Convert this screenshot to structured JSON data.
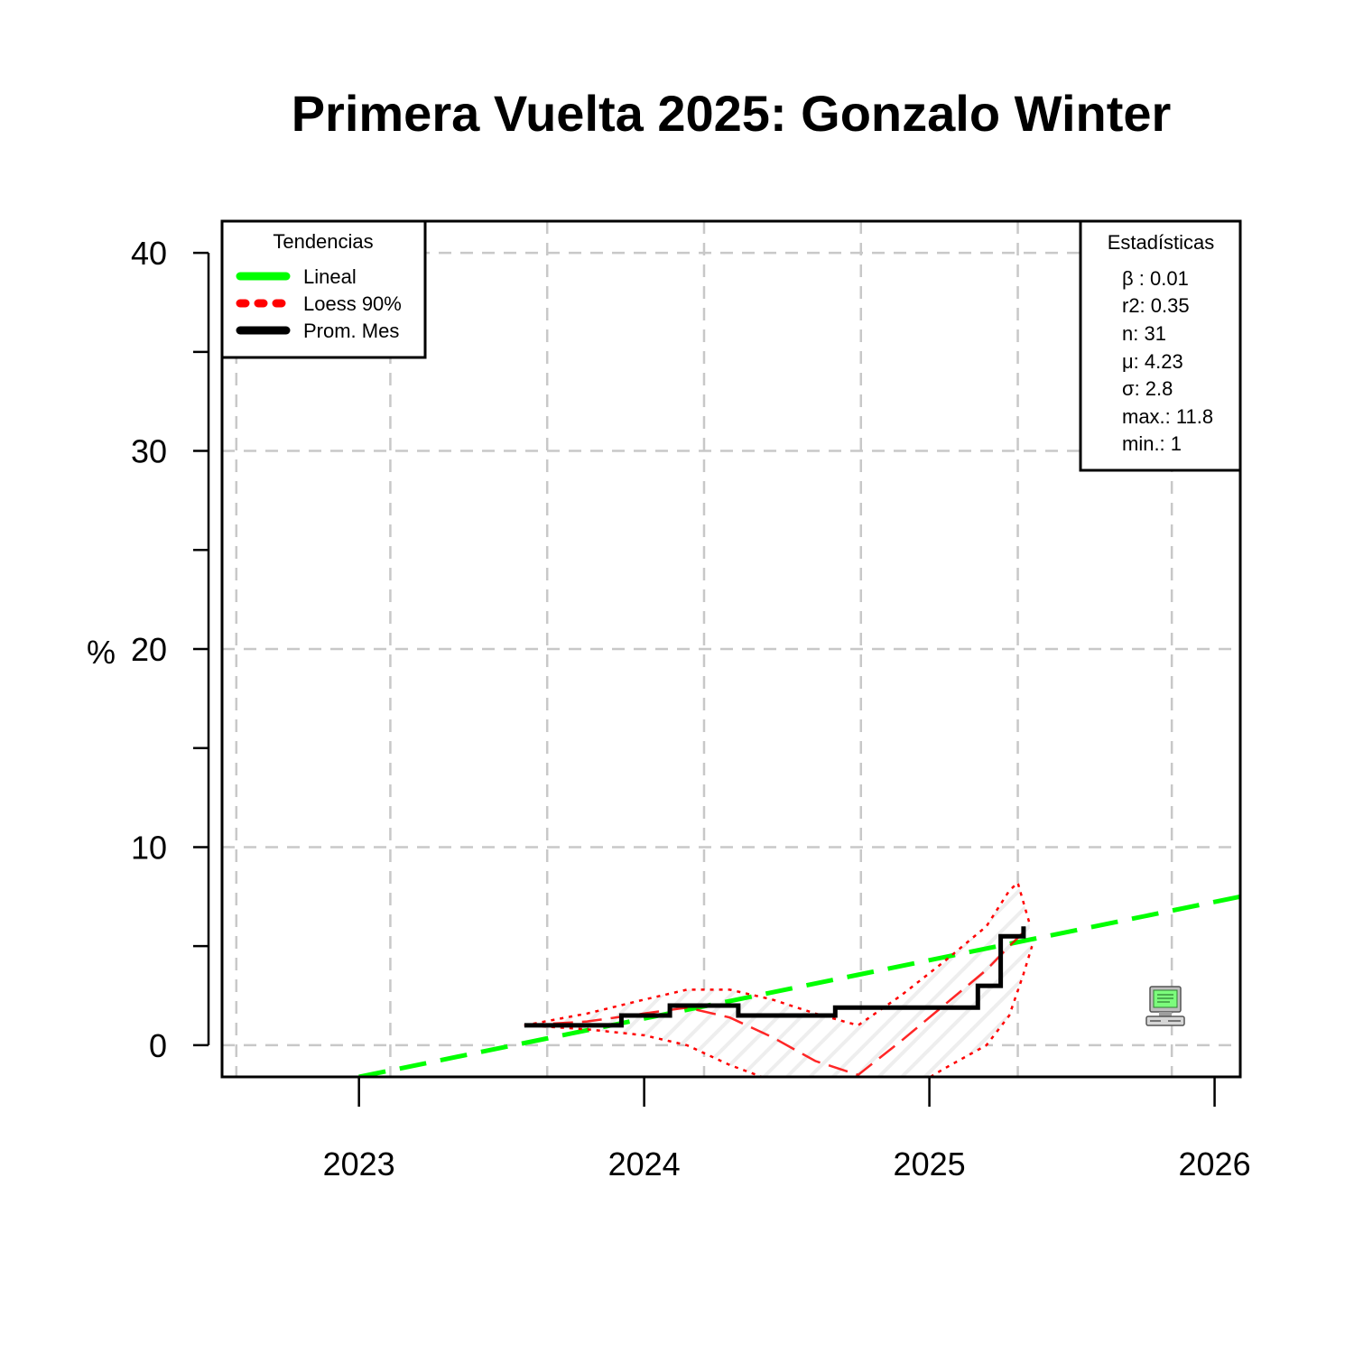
{
  "chart_data": {
    "type": "line",
    "title": "Primera Vuelta 2025: Gonzalo Winter",
    "xlabel": "",
    "ylabel": "%",
    "xlim": [
      2022.52,
      2026.09
    ],
    "ylim": [
      -1.6,
      41.6
    ],
    "x_ticks": [
      2023,
      2024,
      2025,
      2026
    ],
    "x_tick_labels": [
      "2023",
      "2024",
      "2025",
      "2026"
    ],
    "y_ticks": [
      0,
      5,
      10,
      15,
      20,
      25,
      30,
      35,
      40
    ],
    "y_tick_labels": [
      "0",
      "10",
      "20",
      "30",
      "40"
    ],
    "y_labeled_ticks": [
      0,
      10,
      20,
      30,
      40
    ],
    "x_grid": [
      2022.57,
      2023.11,
      2023.66,
      2024.21,
      2024.76,
      2025.31,
      2025.85
    ],
    "y_grid": [
      0,
      10,
      20,
      30,
      40
    ],
    "grid": true,
    "series": [
      {
        "name": "Lineal",
        "style": "dashed",
        "color": "#00ff00",
        "x": [
          2023.0,
          2026.09
        ],
        "y": [
          -1.6,
          7.5
        ]
      },
      {
        "name": "Loess 90%",
        "style": "dashed",
        "color": "#ff0000",
        "x": [
          2023.58,
          2023.8,
          2024.0,
          2024.15,
          2024.3,
          2024.45,
          2024.6,
          2024.75,
          2024.9,
          2025.05,
          2025.2,
          2025.28,
          2025.33
        ],
        "y": [
          1.0,
          1.2,
          1.6,
          1.9,
          1.4,
          0.4,
          -0.8,
          -1.5,
          0.2,
          2.0,
          3.8,
          5.0,
          5.7
        ]
      },
      {
        "name": "Loess upper",
        "style": "dotted",
        "color": "#ff0000",
        "x": [
          2023.58,
          2023.8,
          2024.0,
          2024.15,
          2024.3,
          2024.45,
          2024.6,
          2024.75,
          2024.9,
          2025.05,
          2025.2,
          2025.28,
          2025.31,
          2025.35
        ],
        "y": [
          1.0,
          1.6,
          2.3,
          2.8,
          2.8,
          2.3,
          1.6,
          1.0,
          2.5,
          4.2,
          6.0,
          7.8,
          8.2,
          6.2
        ]
      },
      {
        "name": "Loess lower",
        "style": "dotted",
        "color": "#ff0000",
        "x": [
          2023.58,
          2023.8,
          2024.0,
          2024.15,
          2024.3,
          2024.45,
          2024.6,
          2024.75,
          2024.9,
          2025.05,
          2025.2,
          2025.28,
          2025.33,
          2025.36
        ],
        "y": [
          1.0,
          0.8,
          0.5,
          0.0,
          -1.0,
          -1.8,
          -2.5,
          -3.0,
          -2.5,
          -1.2,
          0.0,
          1.5,
          3.6,
          5.0
        ]
      },
      {
        "name": "Prom. Mes",
        "style": "step",
        "color": "#000000",
        "x": [
          2023.58,
          2023.92,
          2023.92,
          2024.09,
          2024.09,
          2024.33,
          2024.33,
          2024.67,
          2024.67,
          2025.17,
          2025.17,
          2025.25,
          2025.25,
          2025.33,
          2025.33
        ],
        "y": [
          1.0,
          1.0,
          1.5,
          1.5,
          2.0,
          2.0,
          1.5,
          1.5,
          1.9,
          1.9,
          3.0,
          3.0,
          5.5,
          5.5,
          6.0
        ]
      }
    ],
    "legend": {
      "title": "Tendencias",
      "position": "top-left",
      "entries": [
        {
          "label": "Lineal",
          "color": "#00ff00",
          "style": "solid"
        },
        {
          "label": "Loess 90%",
          "color": "#ff0000",
          "style": "dotted"
        },
        {
          "label": "Prom. Mes",
          "color": "#000000",
          "style": "solid"
        }
      ]
    },
    "stats_box": {
      "title": "Estadísticas",
      "position": "top-right",
      "lines": [
        "β : 0.01",
        "r2: 0.35",
        "n: 31",
        "μ: 4.23",
        "σ: 2.8",
        "max.: 11.8",
        "min.: 1"
      ]
    },
    "watermark_icon": "computer-icon"
  }
}
